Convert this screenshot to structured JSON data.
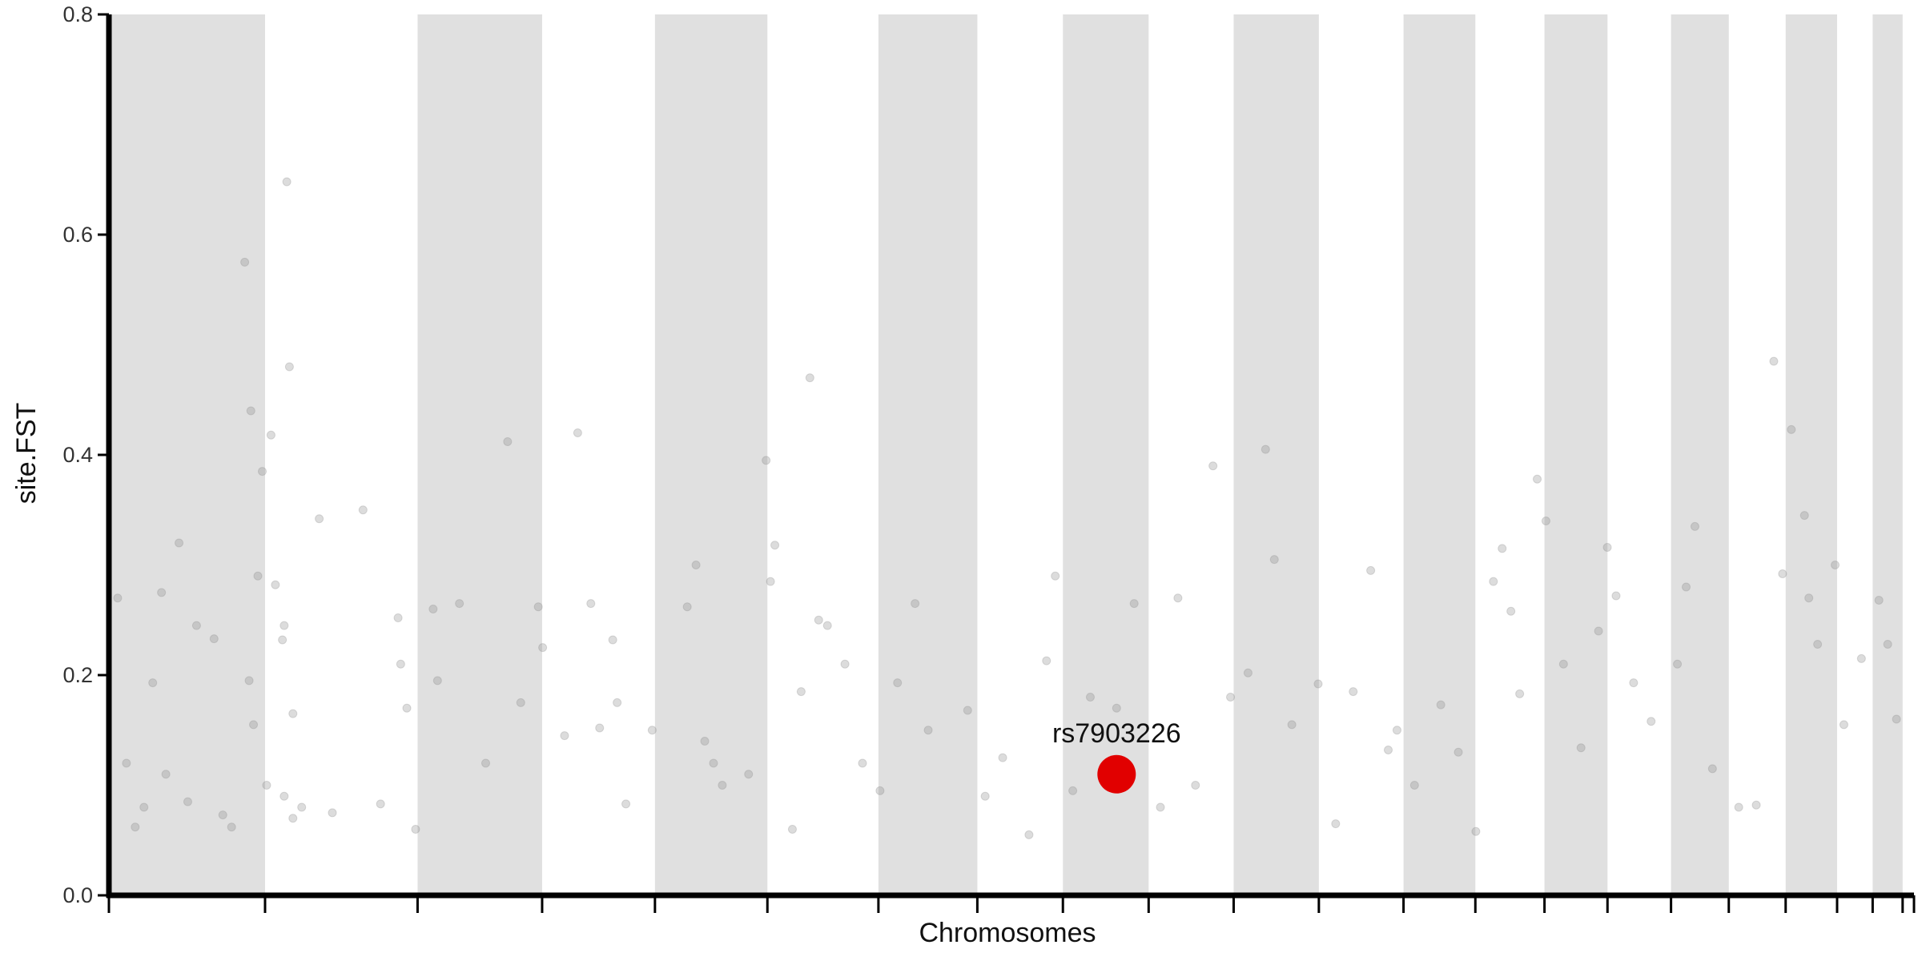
{
  "chart_data": {
    "type": "scatter",
    "title": "",
    "xlabel": "Chromosomes",
    "ylabel": "site.FST",
    "ylim": [
      0,
      0.8
    ],
    "y_ticks": [
      0.0,
      0.2,
      0.4,
      0.6,
      0.8
    ],
    "y_tick_labels": [
      "0.0",
      "0.2",
      "0.4",
      "0.6",
      "0.8"
    ],
    "x_tick_labels": [],
    "grid": false,
    "legend": "none",
    "colors": {
      "band": "#e0e0e0",
      "point": "#8c8c8c",
      "highlight": "#e10000",
      "axis": "#000000"
    },
    "chromosome_band_pattern": "alternating shaded / unshaded",
    "chromosome_bounds": [
      0,
      0.0865,
      0.171,
      0.24,
      0.3025,
      0.3648,
      0.4263,
      0.4811,
      0.5285,
      0.576,
      0.6231,
      0.6703,
      0.7172,
      0.757,
      0.7953,
      0.8302,
      0.8654,
      0.8974,
      0.9289,
      0.9574,
      0.9771,
      0.9937,
      1.0
    ],
    "series": [
      {
        "values": [
          [
            0.01,
            0.27
          ],
          [
            0.02,
            0.12
          ],
          [
            0.03,
            0.062
          ],
          [
            0.04,
            0.08
          ],
          [
            0.05,
            0.193
          ],
          [
            0.06,
            0.275
          ],
          [
            0.065,
            0.11
          ],
          [
            0.08,
            0.32
          ],
          [
            0.09,
            0.085
          ],
          [
            0.1,
            0.245
          ],
          [
            0.12,
            0.233
          ],
          [
            0.13,
            0.073
          ],
          [
            0.14,
            0.062
          ],
          [
            0.155,
            0.575
          ],
          [
            0.162,
            0.44
          ],
          [
            0.17,
            0.29
          ],
          [
            0.175,
            0.385
          ],
          [
            0.185,
            0.418
          ],
          [
            0.19,
            0.282
          ],
          [
            0.198,
            0.232
          ],
          [
            0.2,
            0.245
          ],
          [
            0.203,
            0.648
          ],
          [
            0.206,
            0.48
          ],
          [
            0.21,
            0.165
          ],
          [
            0.22,
            0.08
          ],
          [
            0.16,
            0.195
          ],
          [
            0.165,
            0.155
          ],
          [
            0.21,
            0.07
          ],
          [
            0.2,
            0.09
          ],
          [
            0.18,
            0.1
          ],
          [
            0.24,
            0.342
          ],
          [
            0.255,
            0.075
          ],
          [
            0.29,
            0.35
          ],
          [
            0.31,
            0.083
          ],
          [
            0.33,
            0.252
          ],
          [
            0.333,
            0.21
          ],
          [
            0.34,
            0.17
          ],
          [
            0.35,
            0.06
          ],
          [
            0.37,
            0.26
          ],
          [
            0.375,
            0.195
          ],
          [
            0.4,
            0.265
          ],
          [
            0.43,
            0.12
          ],
          [
            0.455,
            0.412
          ],
          [
            0.47,
            0.175
          ],
          [
            0.49,
            0.262
          ],
          [
            0.495,
            0.225
          ],
          [
            0.52,
            0.145
          ],
          [
            0.535,
            0.42
          ],
          [
            0.55,
            0.265
          ],
          [
            0.56,
            0.152
          ],
          [
            0.575,
            0.232
          ],
          [
            0.58,
            0.175
          ],
          [
            0.59,
            0.083
          ],
          [
            0.62,
            0.15
          ],
          [
            0.66,
            0.262
          ],
          [
            0.67,
            0.3
          ],
          [
            0.68,
            0.14
          ],
          [
            0.69,
            0.12
          ],
          [
            0.7,
            0.1
          ],
          [
            0.73,
            0.11
          ],
          [
            0.75,
            0.395
          ],
          [
            0.755,
            0.285
          ],
          [
            0.76,
            0.318
          ],
          [
            0.78,
            0.06
          ],
          [
            0.79,
            0.185
          ],
          [
            0.8,
            0.47
          ],
          [
            0.81,
            0.25
          ],
          [
            0.82,
            0.245
          ],
          [
            0.84,
            0.21
          ],
          [
            0.86,
            0.12
          ],
          [
            0.88,
            0.095
          ],
          [
            0.9,
            0.193
          ],
          [
            0.92,
            0.265
          ],
          [
            0.935,
            0.15
          ],
          [
            0.98,
            0.168
          ],
          [
            1.0,
            0.09
          ],
          [
            1.02,
            0.125
          ],
          [
            1.05,
            0.055
          ],
          [
            1.07,
            0.213
          ],
          [
            1.08,
            0.29
          ],
          [
            1.1,
            0.095
          ],
          [
            1.12,
            0.18
          ],
          [
            1.15,
            0.17
          ],
          [
            1.17,
            0.265
          ],
          [
            1.2,
            0.08
          ],
          [
            1.22,
            0.27
          ],
          [
            1.24,
            0.1
          ],
          [
            1.26,
            0.39
          ],
          [
            1.28,
            0.18
          ],
          [
            1.3,
            0.202
          ],
          [
            1.32,
            0.405
          ],
          [
            1.33,
            0.305
          ],
          [
            1.35,
            0.155
          ],
          [
            1.38,
            0.192
          ],
          [
            1.4,
            0.065
          ],
          [
            1.42,
            0.185
          ],
          [
            1.44,
            0.295
          ],
          [
            1.46,
            0.132
          ],
          [
            1.47,
            0.15
          ],
          [
            1.49,
            0.1
          ],
          [
            1.52,
            0.173
          ],
          [
            1.54,
            0.13
          ],
          [
            1.56,
            0.058
          ],
          [
            1.58,
            0.285
          ],
          [
            1.59,
            0.315
          ],
          [
            1.6,
            0.258
          ],
          [
            1.61,
            0.183
          ],
          [
            1.63,
            0.378
          ],
          [
            1.64,
            0.34
          ],
          [
            1.66,
            0.21
          ],
          [
            1.68,
            0.134
          ],
          [
            1.7,
            0.24
          ],
          [
            1.71,
            0.316
          ],
          [
            1.72,
            0.272
          ],
          [
            1.74,
            0.193
          ],
          [
            1.76,
            0.158
          ],
          [
            1.79,
            0.21
          ],
          [
            1.8,
            0.28
          ],
          [
            1.81,
            0.335
          ],
          [
            1.83,
            0.115
          ],
          [
            1.86,
            0.08
          ],
          [
            1.88,
            0.082
          ],
          [
            1.9,
            0.485
          ],
          [
            1.91,
            0.292
          ],
          [
            1.92,
            0.423
          ],
          [
            1.935,
            0.345
          ],
          [
            1.94,
            0.27
          ],
          [
            1.95,
            0.228
          ],
          [
            1.97,
            0.3
          ],
          [
            1.98,
            0.155
          ],
          [
            2.0,
            0.215
          ],
          [
            2.02,
            0.268
          ],
          [
            2.03,
            0.228
          ],
          [
            2.04,
            0.16
          ]
        ]
      }
    ],
    "annotations": [
      {
        "label": "rs7903226",
        "x": 1.15,
        "y": 0.11
      }
    ]
  }
}
